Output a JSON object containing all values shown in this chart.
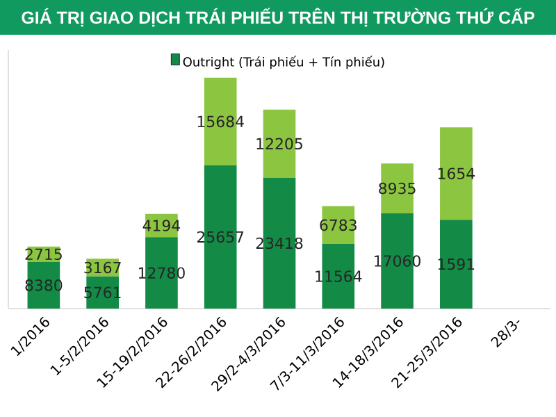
{
  "chart_data": {
    "type": "bar",
    "stacked": true,
    "title": "GIÁ TRỊ GIAO DỊCH TRÁI PHIẾU TRÊN THỊ TRƯỜNG THỨ CẤP",
    "categories": [
      "1/2016",
      "1-5/2/2016",
      "15-19/2/2016",
      "22-26/2/2016",
      "29/2-4/3/2016",
      "7/3-11/3/2016",
      "14-18/3/2016",
      "21-25/3/2016",
      "28/3-"
    ],
    "series": [
      {
        "name": "Outright (Trái phiếu + Tín phiếu)",
        "color": "#138a46",
        "values": [
          8380,
          5761,
          12780,
          25657,
          23418,
          11564,
          17060,
          15911,
          null
        ],
        "value_labels": [
          "8380",
          "5761",
          "12780",
          "25657",
          "23418",
          "11564",
          "17060",
          null,
          null
        ]
      },
      {
        "color": "#8cc641",
        "values": [
          2715,
          3167,
          4194,
          15684,
          12205,
          6783,
          8935,
          16546,
          null
        ],
        "value_labels": [
          "2715",
          "3167",
          "4194",
          "15684",
          "12205",
          "6783",
          "8935",
          null,
          null
        ]
      }
    ],
    "annotations": [
      "1591",
      "1654"
    ],
    "legend": "top"
  }
}
